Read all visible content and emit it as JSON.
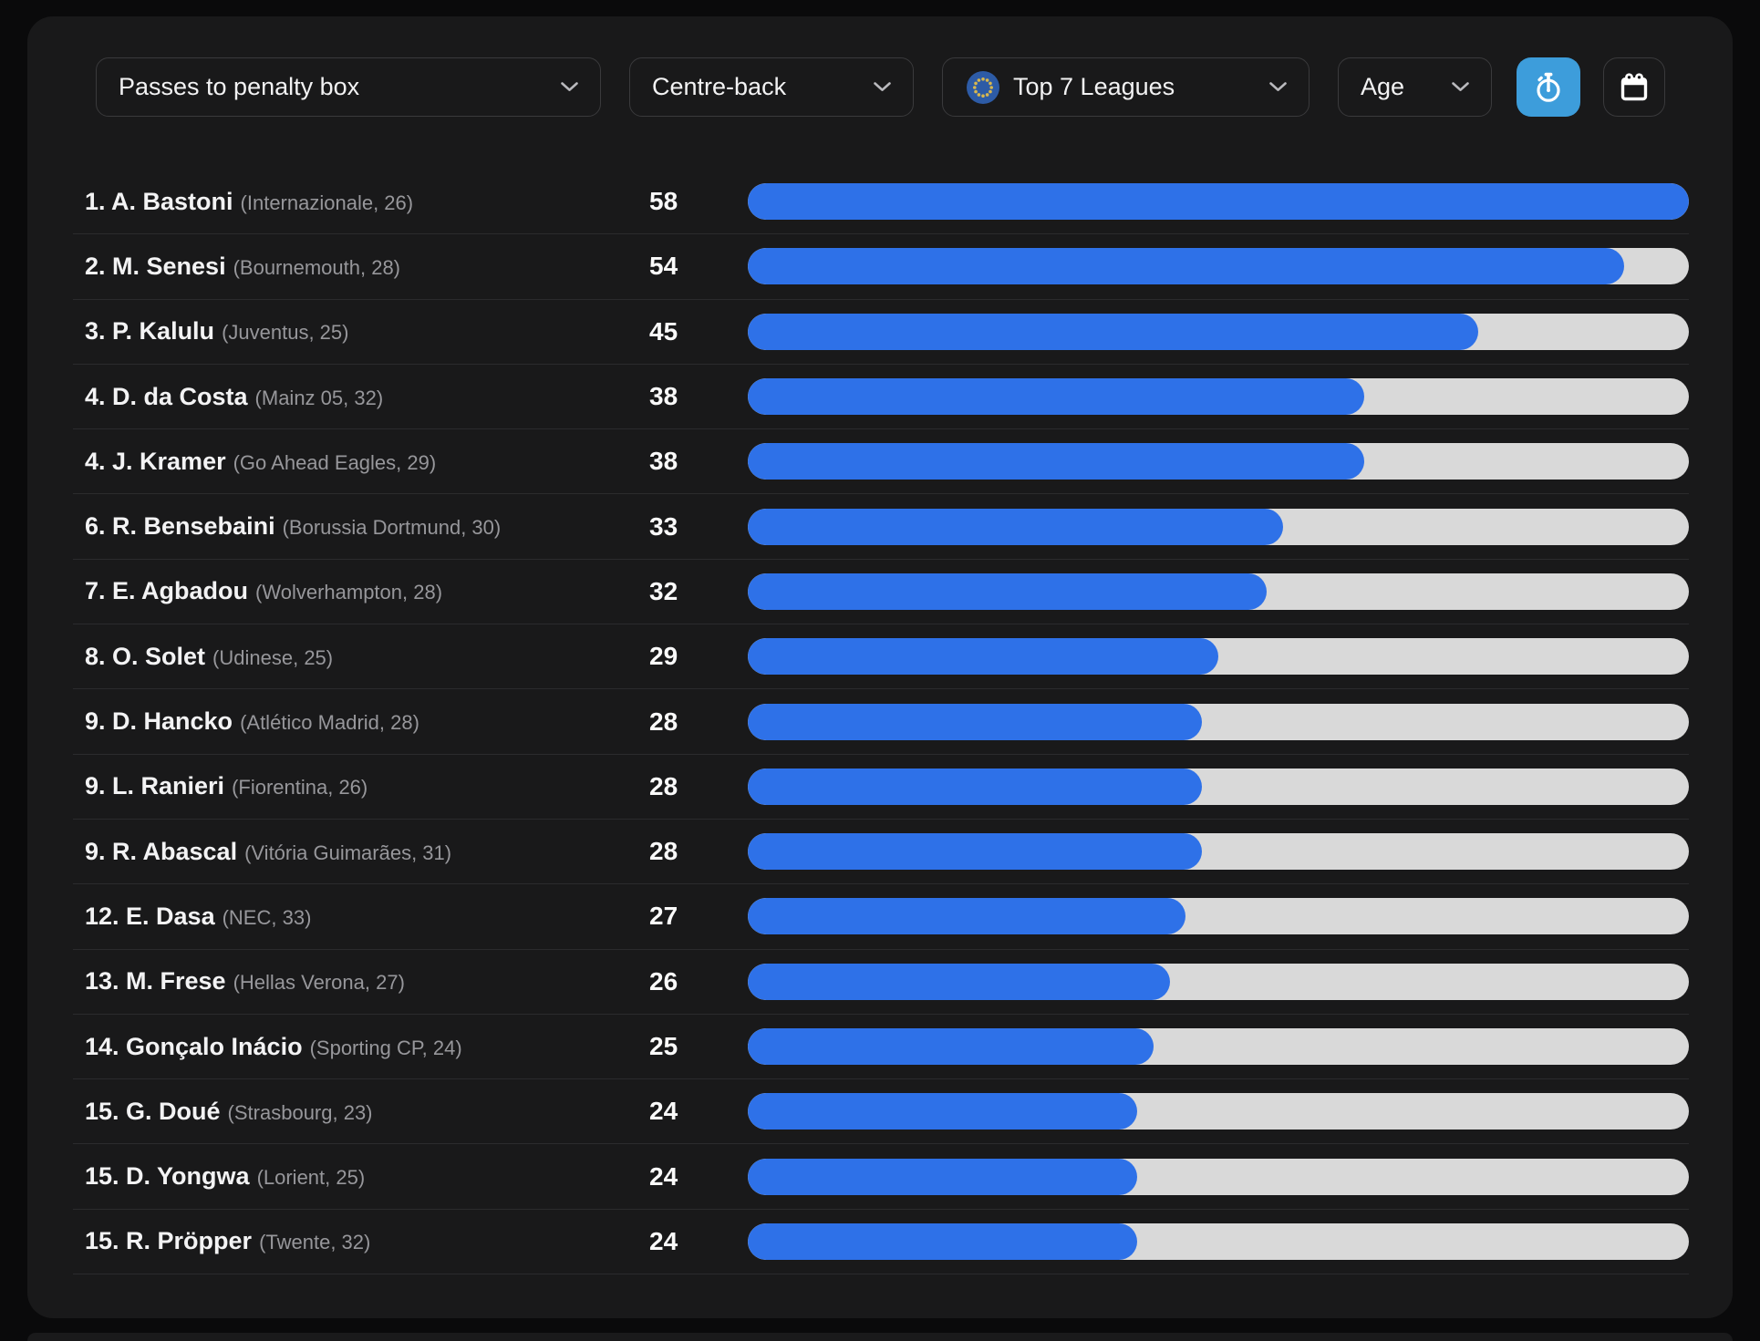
{
  "colors": {
    "accent_blue": "#3d9ddb",
    "bar_fill": "#2e71e8",
    "bar_track": "#d9d9d9"
  },
  "toolbar": {
    "metric_dropdown": {
      "label": "Passes to penalty box"
    },
    "position_dropdown": {
      "label": "Centre-back"
    },
    "league_dropdown": {
      "label": "Top 7 Leagues",
      "icon": "eu-flag-icon"
    },
    "age_dropdown": {
      "label": "Age"
    },
    "timer_button": {
      "icon": "stopwatch-icon",
      "active": true
    },
    "calendar_button": {
      "icon": "calendar-icon",
      "active": false
    }
  },
  "chart_data": {
    "type": "bar",
    "orientation": "horizontal",
    "max_value": 58,
    "rows": [
      {
        "rank": "1.",
        "player": "A. Bastoni",
        "club": "Internazionale",
        "age": 26,
        "value": 58
      },
      {
        "rank": "2.",
        "player": "M. Senesi",
        "club": "Bournemouth",
        "age": 28,
        "value": 54
      },
      {
        "rank": "3.",
        "player": "P. Kalulu",
        "club": "Juventus",
        "age": 25,
        "value": 45
      },
      {
        "rank": "4.",
        "player": "D. da Costa",
        "club": "Mainz 05",
        "age": 32,
        "value": 38
      },
      {
        "rank": "4.",
        "player": "J. Kramer",
        "club": "Go Ahead Eagles",
        "age": 29,
        "value": 38
      },
      {
        "rank": "6.",
        "player": "R. Bensebaini",
        "club": "Borussia Dortmund",
        "age": 30,
        "value": 33
      },
      {
        "rank": "7.",
        "player": "E. Agbadou",
        "club": "Wolverhampton",
        "age": 28,
        "value": 32
      },
      {
        "rank": "8.",
        "player": "O. Solet",
        "club": "Udinese",
        "age": 25,
        "value": 29
      },
      {
        "rank": "9.",
        "player": "D. Hancko",
        "club": "Atlético Madrid",
        "age": 28,
        "value": 28
      },
      {
        "rank": "9.",
        "player": "L. Ranieri",
        "club": "Fiorentina",
        "age": 26,
        "value": 28
      },
      {
        "rank": "9.",
        "player": "R. Abascal",
        "club": "Vitória Guimarães",
        "age": 31,
        "value": 28
      },
      {
        "rank": "12.",
        "player": "E. Dasa",
        "club": "NEC",
        "age": 33,
        "value": 27
      },
      {
        "rank": "13.",
        "player": "M. Frese",
        "club": "Hellas Verona",
        "age": 27,
        "value": 26
      },
      {
        "rank": "14.",
        "player": "Gonçalo Inácio",
        "club": "Sporting CP",
        "age": 24,
        "value": 25
      },
      {
        "rank": "15.",
        "player": "G. Doué",
        "club": "Strasbourg",
        "age": 23,
        "value": 24
      },
      {
        "rank": "15.",
        "player": "D. Yongwa",
        "club": "Lorient",
        "age": 25,
        "value": 24
      },
      {
        "rank": "15.",
        "player": "R. Pröpper",
        "club": "Twente",
        "age": 32,
        "value": 24
      }
    ]
  }
}
